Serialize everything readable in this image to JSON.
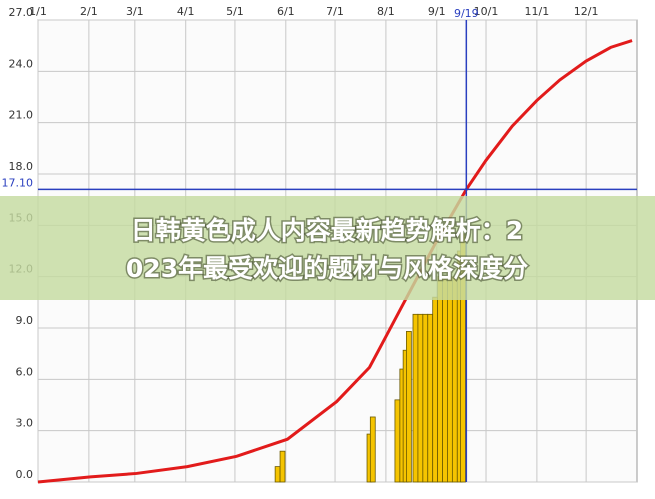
{
  "chart_data": {
    "type": "line",
    "xlim": [
      0,
      365
    ],
    "ylim": [
      0,
      27
    ],
    "xticks": [
      {
        "value": 0,
        "label": "1/1"
      },
      {
        "value": 31,
        "label": "2/1"
      },
      {
        "value": 59,
        "label": "3/1"
      },
      {
        "value": 90,
        "label": "4/1"
      },
      {
        "value": 120,
        "label": "5/1"
      },
      {
        "value": 151,
        "label": "6/1"
      },
      {
        "value": 181,
        "label": "7/1"
      },
      {
        "value": 212,
        "label": "8/1"
      },
      {
        "value": 243,
        "label": "9/1"
      },
      {
        "value": 273,
        "label": "10/1"
      },
      {
        "value": 304,
        "label": "11/1"
      },
      {
        "value": 334,
        "label": "12/1"
      }
    ],
    "yticks": [
      {
        "value": 0,
        "label": "0.0"
      },
      {
        "value": 3,
        "label": "3.0"
      },
      {
        "value": 6,
        "label": "6.0"
      },
      {
        "value": 9,
        "label": "9.0"
      },
      {
        "value": 12,
        "label": "12.0"
      },
      {
        "value": 15,
        "label": "15.0"
      },
      {
        "value": 18,
        "label": "18.0"
      },
      {
        "value": 21,
        "label": "21.0"
      },
      {
        "value": 24,
        "label": "24.0"
      },
      {
        "value": 27,
        "label": "27.0"
      }
    ],
    "grid": true,
    "crosshair": {
      "color": "#2a3fbf",
      "x": {
        "value": 261,
        "label": "9/19"
      },
      "y": {
        "value": 17.1,
        "label": "17.10"
      }
    },
    "series": [
      {
        "type": "line",
        "color": "#e21b1b",
        "x": [
          0,
          32,
          60,
          91,
          121,
          152,
          182,
          202,
          212,
          243,
          261,
          273,
          289,
          304,
          318,
          334,
          349,
          362
        ],
        "values": [
          0.0,
          0.3,
          0.5,
          0.9,
          1.5,
          2.5,
          4.7,
          6.7,
          8.5,
          14.1,
          17.1,
          18.8,
          20.8,
          22.3,
          23.5,
          24.6,
          25.4,
          25.8
        ]
      },
      {
        "type": "bar",
        "color": "#f5c400",
        "x": [
          146,
          149,
          202,
          204,
          219,
          222,
          224,
          226,
          230,
          233,
          236,
          239,
          242,
          245,
          248,
          251,
          254,
          257,
          259
        ],
        "values": [
          0.9,
          1.8,
          2.8,
          3.8,
          4.8,
          6.6,
          7.7,
          8.8,
          9.8,
          9.8,
          9.8,
          9.8,
          10.8,
          12.0,
          12.0,
          12.0,
          12.0,
          13.5,
          14.5
        ]
      }
    ]
  },
  "banner": {
    "lines": [
      "日韩黄色成人内容最新趋势解析：2",
      "023年最受欢迎的题材与风格深度分"
    ]
  }
}
